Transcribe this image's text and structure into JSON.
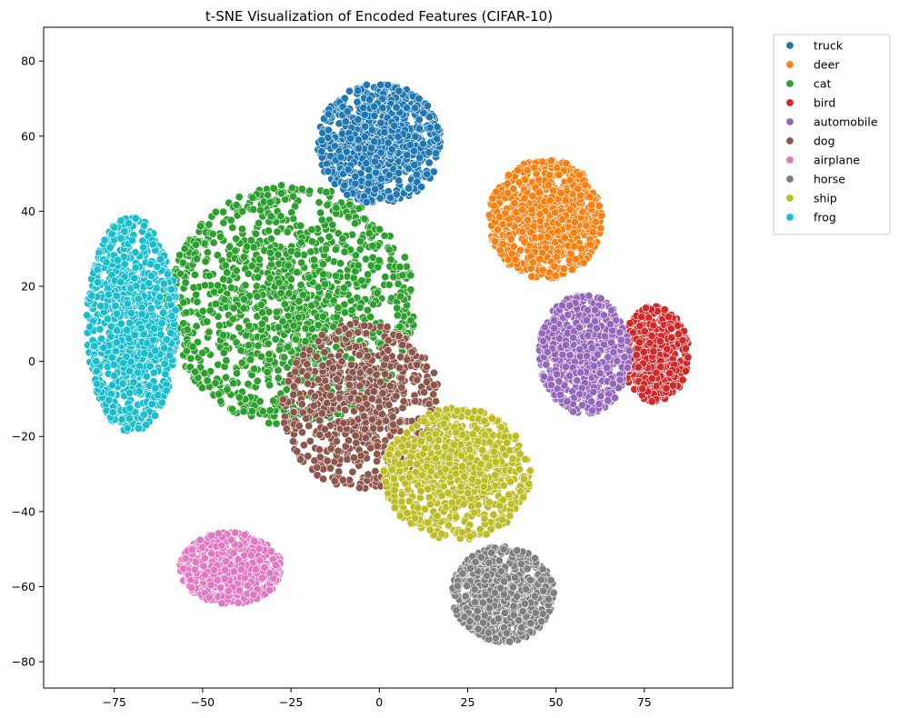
{
  "chart_data": {
    "type": "scatter",
    "title": "t-SNE Visualization of Encoded Features (CIFAR-10)",
    "xlabel": "",
    "ylabel": "",
    "xlim": [
      -95,
      100
    ],
    "ylim": [
      -87,
      89
    ],
    "x_ticks": [
      -75,
      -50,
      -25,
      0,
      25,
      50,
      75
    ],
    "y_ticks": [
      -80,
      -60,
      -40,
      -20,
      0,
      20,
      40,
      60,
      80
    ],
    "x_tick_labels": [
      "−75",
      "−50",
      "−25",
      "0",
      "25",
      "50",
      "75"
    ],
    "y_tick_labels": [
      "−80",
      "−60",
      "−40",
      "−20",
      "0",
      "20",
      "40",
      "60",
      "80"
    ],
    "grid": false,
    "legend_position": "outside-top-right",
    "series": [
      {
        "name": "truck",
        "color": "#1f77b4",
        "cluster": {
          "center": [
            0,
            58
          ],
          "spread": [
            11,
            10
          ],
          "count": 900
        }
      },
      {
        "name": "deer",
        "color": "#ff7f0e",
        "cluster": {
          "center": [
            47,
            38
          ],
          "spread": [
            10,
            10
          ],
          "count": 800
        }
      },
      {
        "name": "cat",
        "color": "#2ca02c",
        "cluster": {
          "center": [
            -25,
            15
          ],
          "spread": [
            22,
            20
          ],
          "count": 1300
        }
      },
      {
        "name": "bird",
        "color": "#d62728",
        "cluster": {
          "center": [
            78,
            2
          ],
          "spread": [
            6,
            8
          ],
          "count": 500
        }
      },
      {
        "name": "automobile",
        "color": "#9467bd",
        "cluster": {
          "center": [
            58,
            2
          ],
          "spread": [
            8,
            10
          ],
          "count": 700
        }
      },
      {
        "name": "dog",
        "color": "#8c564b",
        "cluster": {
          "center": [
            -5,
            -12
          ],
          "spread": [
            14,
            14
          ],
          "count": 700
        }
      },
      {
        "name": "airplane",
        "color": "#e377c2",
        "cluster": {
          "center": [
            -42,
            -55
          ],
          "spread": [
            9,
            6
          ],
          "count": 600
        }
      },
      {
        "name": "horse",
        "color": "#7f7f7f",
        "cluster": {
          "center": [
            35,
            -62
          ],
          "spread": [
            9,
            8
          ],
          "count": 800
        }
      },
      {
        "name": "ship",
        "color": "#bcbd22",
        "cluster": {
          "center": [
            22,
            -30
          ],
          "spread": [
            13,
            11
          ],
          "count": 800
        }
      },
      {
        "name": "frog",
        "color": "#17becf",
        "cluster": {
          "center": [
            -70,
            10
          ],
          "spread": [
            8,
            18
          ],
          "count": 900
        }
      }
    ]
  }
}
